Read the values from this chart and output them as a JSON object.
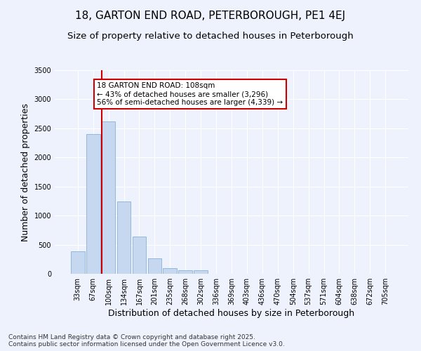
{
  "title1": "18, GARTON END ROAD, PETERBOROUGH, PE1 4EJ",
  "title2": "Size of property relative to detached houses in Peterborough",
  "xlabel": "Distribution of detached houses by size in Peterborough",
  "ylabel": "Number of detached properties",
  "categories": [
    "33sqm",
    "67sqm",
    "100sqm",
    "134sqm",
    "167sqm",
    "201sqm",
    "235sqm",
    "268sqm",
    "302sqm",
    "336sqm",
    "369sqm",
    "403sqm",
    "436sqm",
    "470sqm",
    "504sqm",
    "537sqm",
    "571sqm",
    "604sqm",
    "638sqm",
    "672sqm",
    "705sqm"
  ],
  "values": [
    390,
    2400,
    2620,
    1240,
    640,
    260,
    100,
    65,
    55,
    0,
    0,
    0,
    0,
    0,
    0,
    0,
    0,
    0,
    0,
    0,
    0
  ],
  "bar_color": "#c5d8f0",
  "bar_edge_color": "#8ab0d8",
  "vline_color": "#cc0000",
  "annotation_text": "18 GARTON END ROAD: 108sqm\n← 43% of detached houses are smaller (3,296)\n56% of semi-detached houses are larger (4,339) →",
  "annotation_box_color": "#ffffff",
  "annotation_box_edge": "#cc0000",
  "ylim": [
    0,
    3500
  ],
  "yticks": [
    0,
    500,
    1000,
    1500,
    2000,
    2500,
    3000,
    3500
  ],
  "bg_color": "#eef2fc",
  "grid_color": "#ffffff",
  "footer": "Contains HM Land Registry data © Crown copyright and database right 2025.\nContains public sector information licensed under the Open Government Licence v3.0.",
  "title_fontsize": 11,
  "subtitle_fontsize": 9.5,
  "tick_fontsize": 7,
  "label_fontsize": 9,
  "footer_fontsize": 6.5
}
